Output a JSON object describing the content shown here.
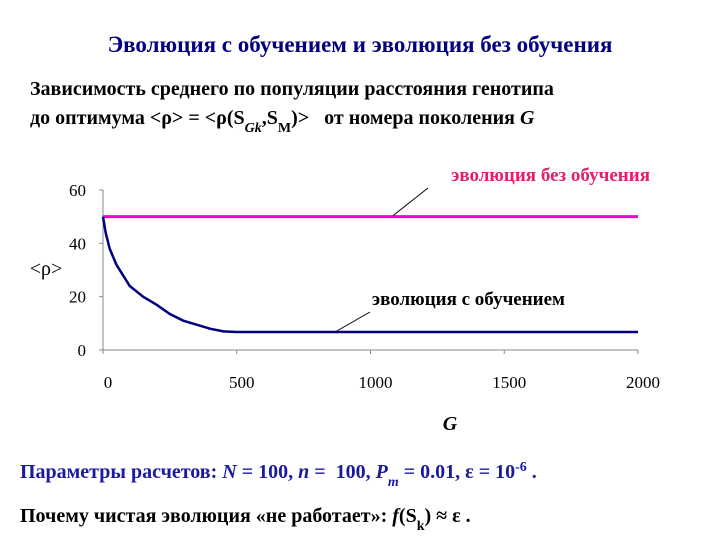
{
  "slide": {
    "title": "Эволюция с обучением и эволюция без обучения",
    "subtitle": [
      [
        {
          "text": "Зависимость среднего по популяции расстояния генотипа"
        }
      ],
      [
        {
          "text": "до оптимума <ρ> = <ρ(S"
        },
        {
          "text": "Gk",
          "style": "sub-italic"
        },
        {
          "text": ",S"
        },
        {
          "text": "M",
          "style": "sub"
        },
        {
          "text": ")>   от номера поколения "
        },
        {
          "text": "G",
          "style": "italic"
        }
      ]
    ],
    "params": [
      {
        "text": "Параметры расчетов: "
      },
      {
        "text": "N",
        "style": "italic"
      },
      {
        "text": " = 100, "
      },
      {
        "text": "n",
        "style": "italic"
      },
      {
        "text": " =  100, "
      },
      {
        "text": "P",
        "style": "italic"
      },
      {
        "text": "m",
        "style": "sub-italic"
      },
      {
        "text": " = 0.01, ε = 10"
      },
      {
        "text": "-6",
        "style": "sup"
      },
      {
        "text": " ."
      }
    ],
    "question": [
      {
        "text": "Почему чистая эволюция «не работает»: "
      },
      {
        "text": "f",
        "style": "italic"
      },
      {
        "text": "(S"
      },
      {
        "text": "k",
        "style": "sub"
      },
      {
        "text": ") ≈ ε ."
      }
    ]
  },
  "chart_data": {
    "type": "line",
    "xlabel": "G",
    "ylabel": "<ρ>",
    "xlim": [
      0,
      2000
    ],
    "ylim": [
      0,
      60
    ],
    "xticks": [
      0,
      500,
      1000,
      1500,
      2000
    ],
    "yticks": [
      0,
      20,
      40,
      60
    ],
    "series": [
      {
        "name": "эволюция без обучения",
        "color": "#ff00cc",
        "x": [
          0,
          2000
        ],
        "values": [
          50,
          50
        ]
      },
      {
        "name": "эволюция с обучением",
        "color": "#000080",
        "x": [
          0,
          10,
          25,
          50,
          75,
          100,
          150,
          200,
          250,
          300,
          350,
          400,
          450,
          500,
          1000,
          1500,
          2000
        ],
        "values": [
          50,
          44,
          38,
          32,
          28,
          24,
          20,
          17,
          13.5,
          11,
          9.5,
          8,
          7,
          6.75,
          6.75,
          6.75,
          6.75
        ]
      }
    ]
  }
}
